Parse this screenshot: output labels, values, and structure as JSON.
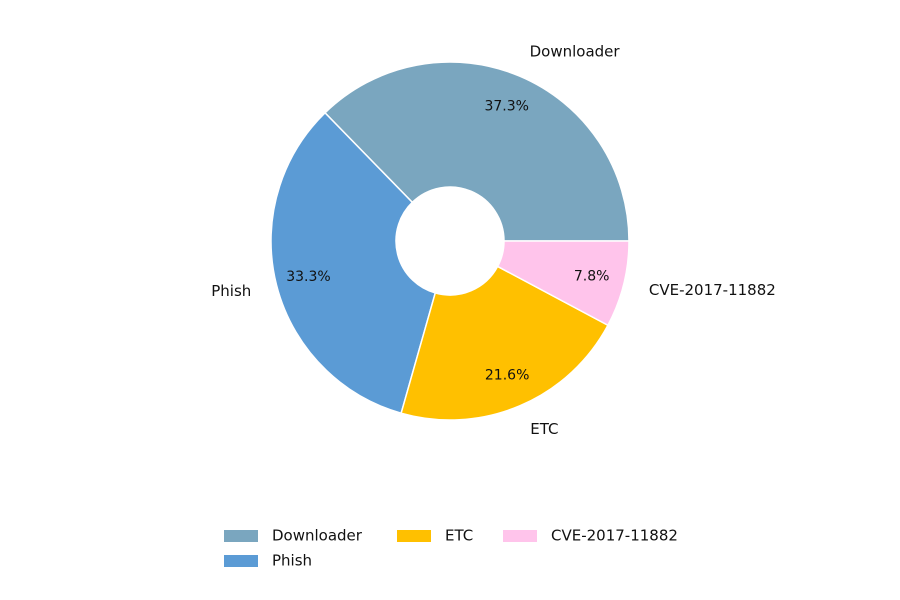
{
  "chart_data": {
    "type": "pie",
    "title": "",
    "donut": true,
    "categories": [
      "Downloader",
      "Phish",
      "ETC",
      "CVE-2017-11882"
    ],
    "values": [
      37.3,
      33.3,
      21.6,
      7.8
    ],
    "percent_labels": [
      "37.3%",
      "33.3%",
      "21.6%",
      "7.8%"
    ],
    "colors": [
      "#7AA6BF",
      "#5B9BD5",
      "#FFC000",
      "#FFC4EB"
    ],
    "legend": {
      "placement": "bottom-center",
      "entries": [
        "Downloader",
        "Phish",
        "ETC",
        "CVE-2017-11882"
      ]
    }
  }
}
